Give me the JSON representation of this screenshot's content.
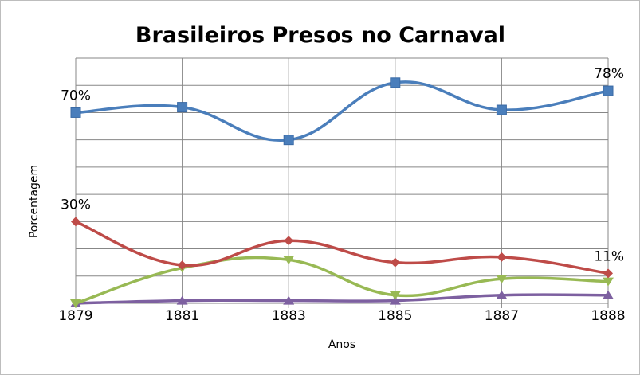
{
  "chart_data": {
    "type": "line",
    "title": "Brasileiros Presos no Carnaval",
    "xlabel": "Anos",
    "ylabel": "Porcentagem",
    "x": [
      "1879",
      "1881",
      "1883",
      "1885",
      "1887",
      "1888"
    ],
    "ylim": [
      0,
      90
    ],
    "grid": true,
    "legend": "none",
    "smooth": true,
    "series": [
      {
        "color": "#4a7ebb",
        "marker": "square",
        "values": [
          70,
          72,
          60,
          81,
          71,
          78
        ]
      },
      {
        "color": "#be4b48",
        "marker": "diamond",
        "values": [
          30,
          14,
          23,
          15,
          17,
          11
        ]
      },
      {
        "color": "#98b954",
        "marker": "triangle-down",
        "values": [
          0,
          13,
          16,
          3,
          9,
          8
        ]
      },
      {
        "color": "#7d60a0",
        "marker": "triangle-up",
        "values": [
          0,
          1,
          1,
          1,
          3,
          3
        ]
      }
    ],
    "data_labels": [
      {
        "series": 0,
        "index": 0,
        "text": "70%"
      },
      {
        "series": 0,
        "index": 5,
        "text": "78%"
      },
      {
        "series": 1,
        "index": 0,
        "text": "30%"
      },
      {
        "series": 1,
        "index": 5,
        "text": "11%"
      }
    ]
  }
}
